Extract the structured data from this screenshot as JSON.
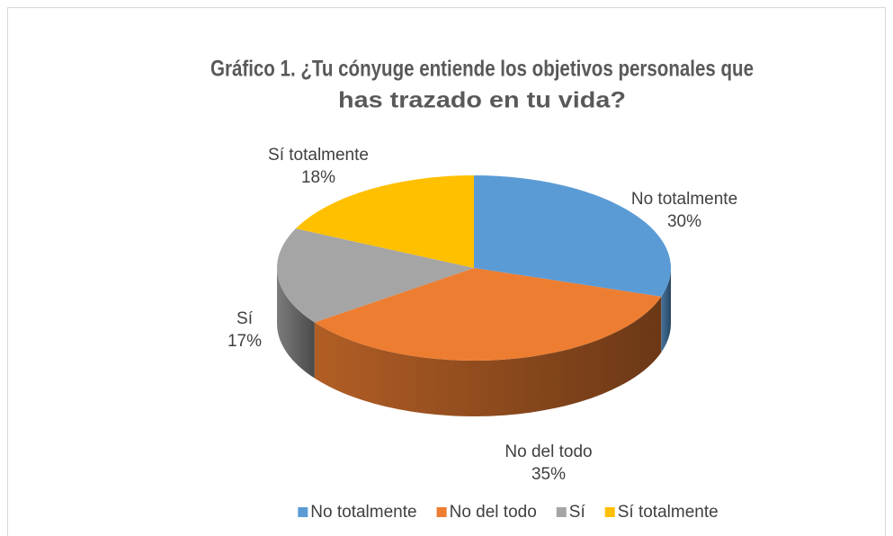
{
  "chart_data": {
    "type": "pie3d",
    "title": [
      "Gráfico 1. ¿Tu cónyuge entiende los objetivos personales que",
      "has trazado en tu vida?"
    ],
    "categories": [
      "No totalmente",
      "No del todo",
      "Sí",
      "Sí totalmente"
    ],
    "values": [
      30,
      35,
      17,
      18
    ],
    "value_labels": [
      "30%",
      "35%",
      "17%",
      "18%"
    ],
    "colors": [
      "#5b9bd5",
      "#ed7d31",
      "#a5a5a5",
      "#ffc000"
    ],
    "legend": "bottom"
  }
}
